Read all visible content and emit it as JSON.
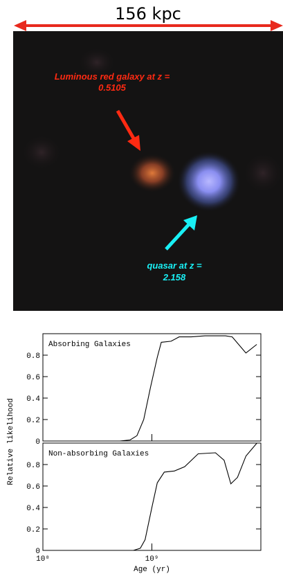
{
  "image": {
    "scale_label": "156 kpc",
    "annotations": [
      {
        "lines": [
          "Luminous red galaxy at z =",
          "0.5105"
        ],
        "color": "#ff2a12"
      },
      {
        "lines": [
          "quasar at z =",
          "2.158"
        ],
        "color": "#19f0f5"
      }
    ]
  },
  "chart_data": [
    {
      "type": "line",
      "title": "Absorbing Galaxies",
      "ylabel": "Relative likelihood",
      "xscale": "log",
      "xlim": [
        100000000,
        10000000000
      ],
      "ylim": [
        0,
        1
      ],
      "yticks": [
        0,
        0.2,
        0.4,
        0.6,
        0.8
      ],
      "color": "#000000",
      "x": [
        508000000,
        631000000,
        729000000,
        841000000,
        971000000,
        1120000000,
        1220000000,
        1500000000,
        1780000000,
        2300000000,
        3070000000,
        4730000000,
        5460000000,
        7290000000,
        9170000000
      ],
      "values": [
        0,
        0.01,
        0.05,
        0.2,
        0.5,
        0.78,
        0.92,
        0.93,
        0.97,
        0.97,
        0.98,
        0.98,
        0.97,
        0.82,
        0.9
      ]
    },
    {
      "type": "line",
      "title": "Non-absorbing Galaxies",
      "xlabel": "Age (yr)",
      "xscale": "log",
      "xlim": [
        100000000,
        10000000000
      ],
      "ylim": [
        0,
        1
      ],
      "xticks": [
        {
          "value": 100000000,
          "label": "10⁸"
        },
        {
          "value": 1000000000,
          "label": "10⁹"
        }
      ],
      "yticks": [
        0,
        0.2,
        0.4,
        0.6,
        0.8
      ],
      "color": "#000000",
      "x": [
        677000000,
        783000000,
        866000000,
        1000000000,
        1120000000,
        1300000000,
        1610000000,
        2000000000,
        2660000000,
        3830000000,
        4600000000,
        5300000000,
        6100000000,
        7300000000,
        9200000000
      ],
      "values": [
        0,
        0.02,
        0.1,
        0.4,
        0.63,
        0.73,
        0.74,
        0.78,
        0.9,
        0.91,
        0.84,
        0.62,
        0.68,
        0.88,
        1.0
      ]
    }
  ]
}
